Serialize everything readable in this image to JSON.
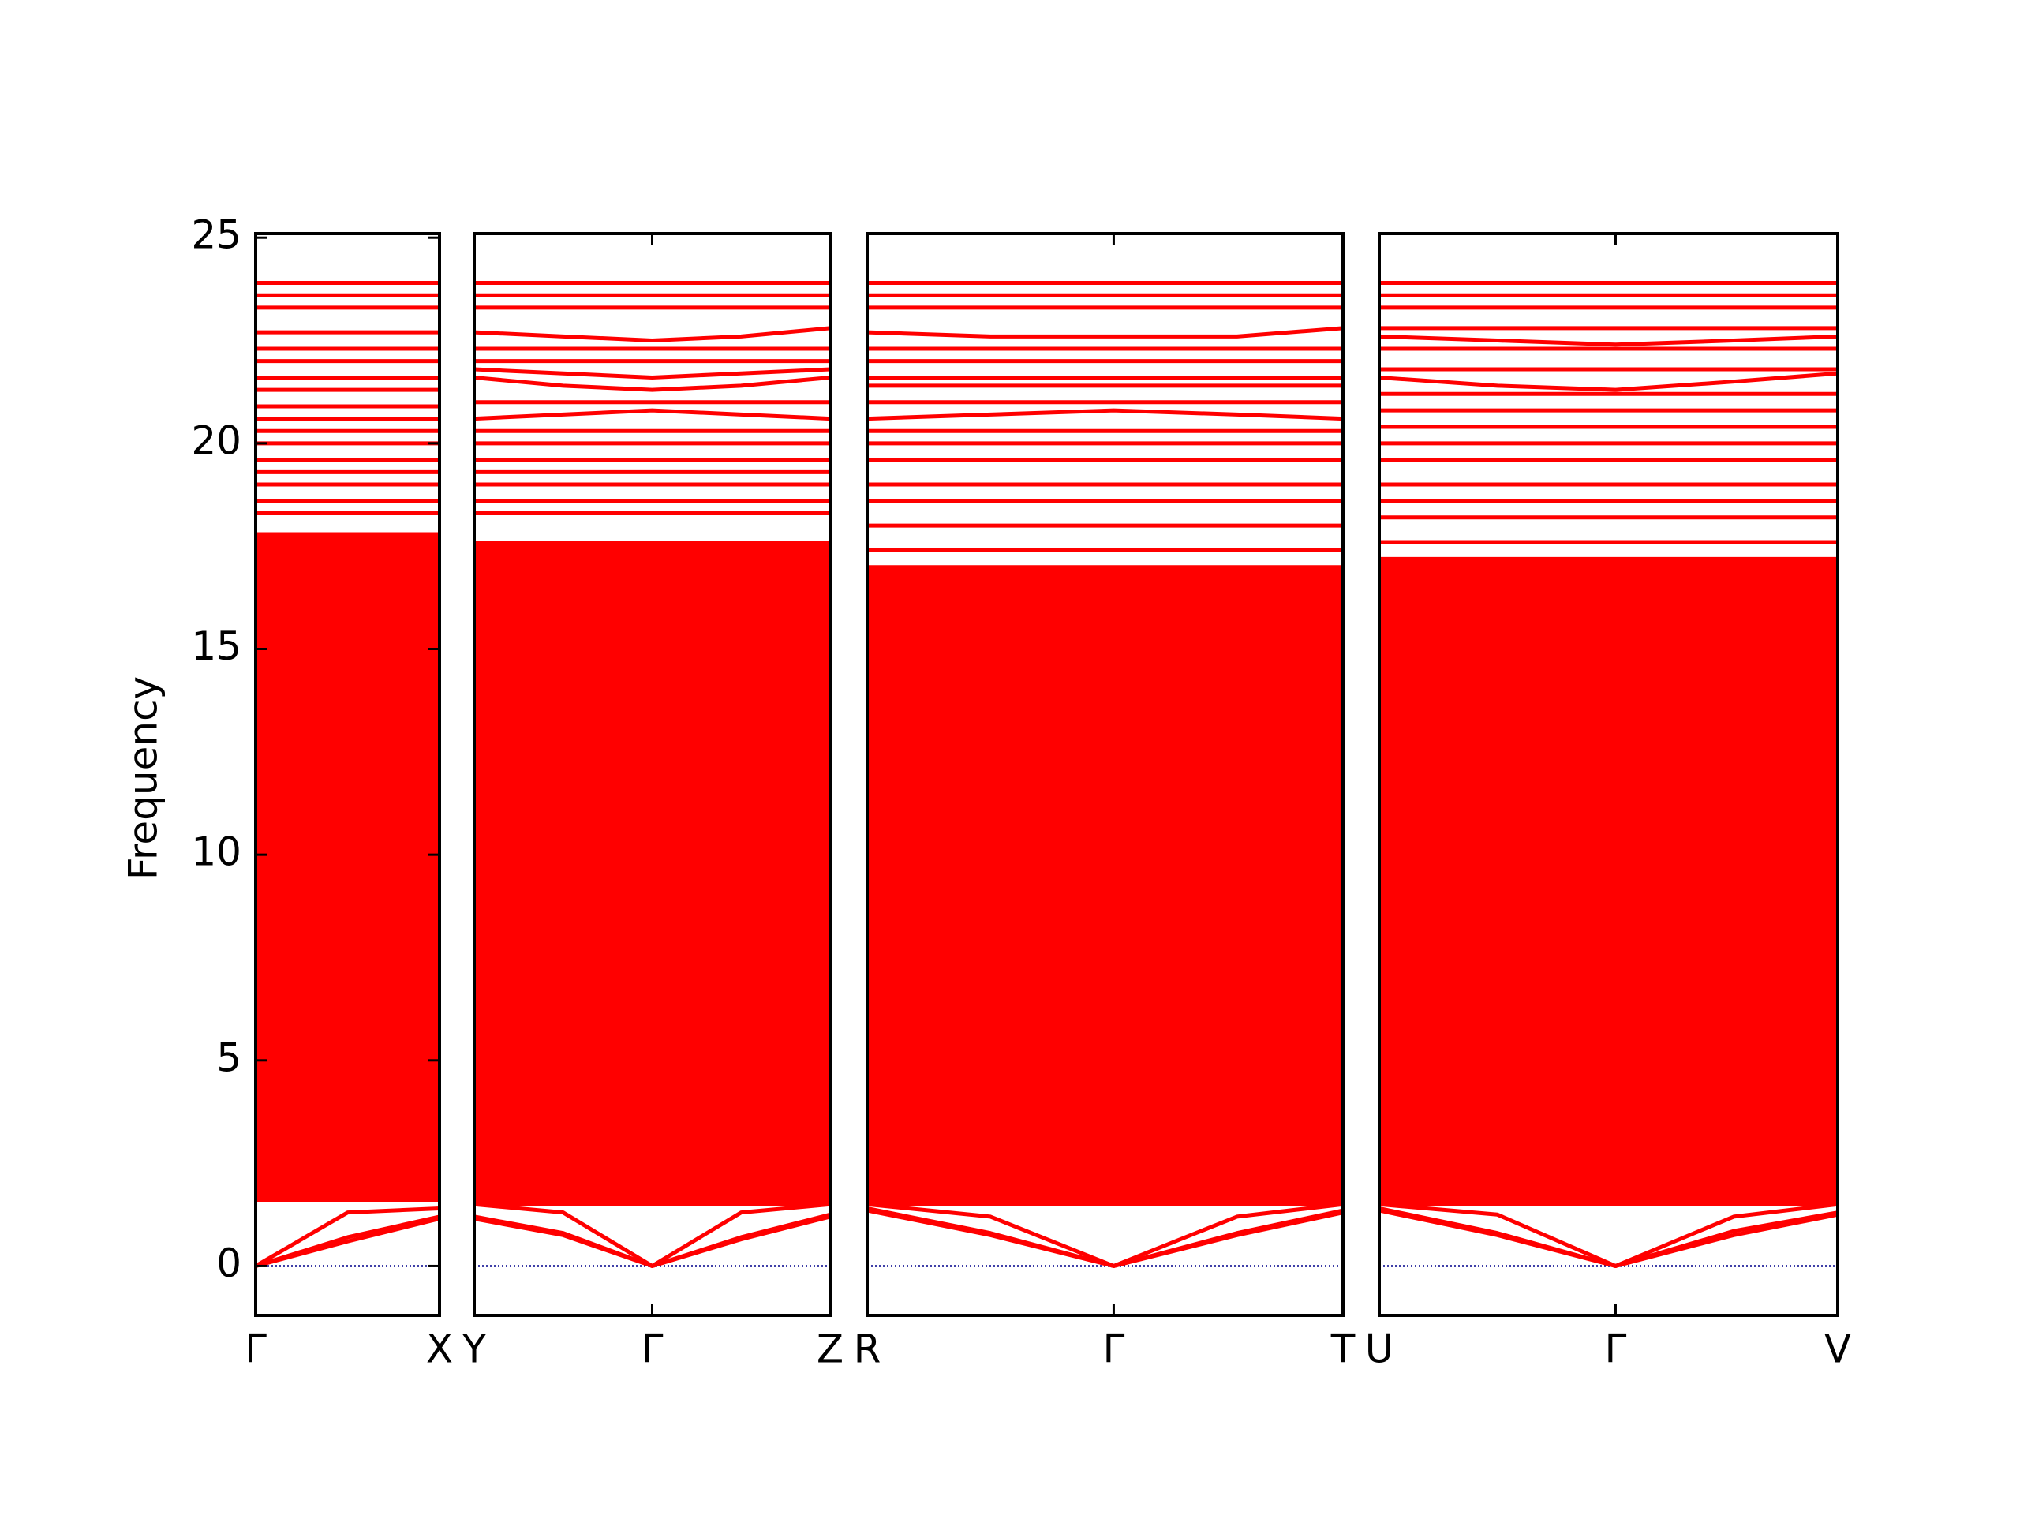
{
  "chart_data": [
    {
      "type": "line",
      "y_label": "Frequency",
      "ylim": [
        -1.2,
        25.1
      ],
      "yticks": [
        0,
        5,
        10,
        15,
        20,
        25
      ],
      "zero_line_color": "#00008b",
      "x": [
        0,
        0.5,
        1
      ],
      "xlim": [
        0,
        1
      ],
      "xticks": [
        {
          "value": 0,
          "label": "Γ"
        },
        {
          "value": 1,
          "label": "X"
        }
      ],
      "series": [
        {
          "type": "area",
          "color": "#ff0000",
          "values": [
            1.6,
            1.6,
            1.6
          ],
          "upper": [
            17.8,
            17.8,
            17.8
          ]
        },
        {
          "color": "#ff0000",
          "values": [
            0,
            1.3,
            1.4
          ]
        },
        {
          "color": "#ff0000",
          "values": [
            0,
            0.7,
            1.2
          ]
        },
        {
          "color": "#ff0000",
          "values": [
            0,
            0.6,
            1.15
          ]
        },
        {
          "color": "#ff0000",
          "values": [
            18.3,
            18.3,
            18.3
          ]
        },
        {
          "color": "#ff0000",
          "values": [
            18.6,
            18.6,
            18.6
          ]
        },
        {
          "color": "#ff0000",
          "values": [
            19.0,
            19.0,
            19.0
          ]
        },
        {
          "color": "#ff0000",
          "values": [
            19.3,
            19.3,
            19.3
          ]
        },
        {
          "color": "#ff0000",
          "values": [
            19.6,
            19.6,
            19.6
          ]
        },
        {
          "color": "#ff0000",
          "values": [
            20.0,
            20.0,
            20.0
          ]
        },
        {
          "color": "#ff0000",
          "values": [
            20.3,
            20.3,
            20.3
          ]
        },
        {
          "color": "#ff0000",
          "values": [
            20.6,
            20.6,
            20.6
          ]
        },
        {
          "color": "#ff0000",
          "values": [
            20.9,
            20.9,
            20.9
          ]
        },
        {
          "color": "#ff0000",
          "values": [
            21.3,
            21.3,
            21.3
          ]
        },
        {
          "color": "#ff0000",
          "values": [
            21.6,
            21.6,
            21.6
          ]
        },
        {
          "color": "#ff0000",
          "values": [
            22.0,
            22.0,
            22.0
          ]
        },
        {
          "color": "#ff0000",
          "values": [
            22.3,
            22.3,
            22.3
          ]
        },
        {
          "color": "#ff0000",
          "values": [
            22.7,
            22.7,
            22.7
          ]
        },
        {
          "color": "#ff0000",
          "values": [
            23.3,
            23.3,
            23.3
          ]
        },
        {
          "color": "#ff0000",
          "values": [
            23.6,
            23.6,
            23.6
          ]
        },
        {
          "color": "#ff0000",
          "values": [
            23.9,
            23.9,
            23.9
          ]
        }
      ]
    },
    {
      "type": "line",
      "ylim": [
        -1.2,
        25.1
      ],
      "zero_line_color": "#00008b",
      "x": [
        0,
        0.5,
        1,
        1.5,
        2
      ],
      "xlim": [
        0,
        2
      ],
      "xticks": [
        {
          "value": 0,
          "label": "Y"
        },
        {
          "value": 1,
          "label": "Γ"
        },
        {
          "value": 2,
          "label": "Z"
        }
      ],
      "series": [
        {
          "type": "area",
          "color": "#ff0000",
          "values": [
            1.5,
            1.5,
            1.5,
            1.5,
            1.5
          ],
          "upper": [
            17.6,
            17.6,
            17.6,
            17.6,
            17.6
          ]
        },
        {
          "color": "#ff0000",
          "values": [
            1.5,
            1.3,
            0,
            1.3,
            1.5
          ]
        },
        {
          "color": "#ff0000",
          "values": [
            1.2,
            0.8,
            0,
            0.7,
            1.25
          ]
        },
        {
          "color": "#ff0000",
          "values": [
            1.15,
            0.75,
            0,
            0.65,
            1.2
          ]
        },
        {
          "color": "#ff0000",
          "values": [
            18.3,
            18.3,
            18.3,
            18.3,
            18.3
          ]
        },
        {
          "color": "#ff0000",
          "values": [
            18.6,
            18.6,
            18.6,
            18.6,
            18.6
          ]
        },
        {
          "color": "#ff0000",
          "values": [
            19.0,
            19.0,
            19.0,
            19.0,
            19.0
          ]
        },
        {
          "color": "#ff0000",
          "values": [
            19.3,
            19.3,
            19.3,
            19.3,
            19.3
          ]
        },
        {
          "color": "#ff0000",
          "values": [
            19.6,
            19.6,
            19.6,
            19.6,
            19.6
          ]
        },
        {
          "color": "#ff0000",
          "values": [
            20.0,
            20.0,
            20.0,
            20.0,
            20.0
          ]
        },
        {
          "color": "#ff0000",
          "values": [
            20.3,
            20.3,
            20.3,
            20.3,
            20.3
          ]
        },
        {
          "color": "#ff0000",
          "values": [
            20.6,
            20.7,
            20.8,
            20.7,
            20.6
          ]
        },
        {
          "color": "#ff0000",
          "values": [
            21.0,
            21.0,
            21.0,
            21.0,
            21.0
          ]
        },
        {
          "color": "#ff0000",
          "values": [
            21.6,
            21.4,
            21.3,
            21.4,
            21.6
          ]
        },
        {
          "color": "#ff0000",
          "values": [
            21.8,
            21.7,
            21.6,
            21.7,
            21.8
          ]
        },
        {
          "color": "#ff0000",
          "values": [
            22.0,
            22.0,
            22.0,
            22.0,
            22.0
          ]
        },
        {
          "color": "#ff0000",
          "values": [
            22.3,
            22.3,
            22.3,
            22.3,
            22.3
          ]
        },
        {
          "color": "#ff0000",
          "values": [
            22.7,
            22.6,
            22.5,
            22.6,
            22.8
          ]
        },
        {
          "color": "#ff0000",
          "values": [
            23.3,
            23.3,
            23.3,
            23.3,
            23.3
          ]
        },
        {
          "color": "#ff0000",
          "values": [
            23.6,
            23.6,
            23.6,
            23.6,
            23.6
          ]
        },
        {
          "color": "#ff0000",
          "values": [
            23.9,
            23.9,
            23.9,
            23.9,
            23.9
          ]
        }
      ]
    },
    {
      "type": "line",
      "ylim": [
        -1.2,
        25.1
      ],
      "zero_line_color": "#00008b",
      "x": [
        0,
        0.5,
        1,
        1.5,
        1.93
      ],
      "xlim": [
        0,
        1.93
      ],
      "xticks": [
        {
          "value": 0,
          "label": "R"
        },
        {
          "value": 1,
          "label": "Γ"
        },
        {
          "value": 1.93,
          "label": "T"
        }
      ],
      "series": [
        {
          "type": "area",
          "color": "#ff0000",
          "values": [
            1.5,
            1.5,
            1.5,
            1.5,
            1.5
          ],
          "upper": [
            17.0,
            17.0,
            17.0,
            17.0,
            17.0
          ]
        },
        {
          "color": "#ff0000",
          "values": [
            1.5,
            1.2,
            0,
            1.2,
            1.5
          ]
        },
        {
          "color": "#ff0000",
          "values": [
            1.4,
            0.8,
            0,
            0.8,
            1.35
          ]
        },
        {
          "color": "#ff0000",
          "values": [
            1.35,
            0.75,
            0,
            0.75,
            1.3
          ]
        },
        {
          "color": "#ff0000",
          "values": [
            17.4,
            17.4,
            17.4,
            17.4,
            17.4
          ]
        },
        {
          "color": "#ff0000",
          "values": [
            18.0,
            18.0,
            18.0,
            18.0,
            18.0
          ]
        },
        {
          "color": "#ff0000",
          "values": [
            18.6,
            18.6,
            18.6,
            18.6,
            18.6
          ]
        },
        {
          "color": "#ff0000",
          "values": [
            19.0,
            19.0,
            19.0,
            19.0,
            19.0
          ]
        },
        {
          "color": "#ff0000",
          "values": [
            19.6,
            19.6,
            19.6,
            19.6,
            19.6
          ]
        },
        {
          "color": "#ff0000",
          "values": [
            20.0,
            20.0,
            20.0,
            20.0,
            20.0
          ]
        },
        {
          "color": "#ff0000",
          "values": [
            20.3,
            20.3,
            20.3,
            20.3,
            20.3
          ]
        },
        {
          "color": "#ff0000",
          "values": [
            20.6,
            20.7,
            20.8,
            20.7,
            20.6
          ]
        },
        {
          "color": "#ff0000",
          "values": [
            21.0,
            21.0,
            21.0,
            21.0,
            21.0
          ]
        },
        {
          "color": "#ff0000",
          "values": [
            21.4,
            21.4,
            21.4,
            21.4,
            21.4
          ]
        },
        {
          "color": "#ff0000",
          "values": [
            21.6,
            21.6,
            21.6,
            21.6,
            21.6
          ]
        },
        {
          "color": "#ff0000",
          "values": [
            22.0,
            22.0,
            22.0,
            22.0,
            22.0
          ]
        },
        {
          "color": "#ff0000",
          "values": [
            22.3,
            22.3,
            22.3,
            22.3,
            22.3
          ]
        },
        {
          "color": "#ff0000",
          "values": [
            22.7,
            22.6,
            22.6,
            22.6,
            22.8
          ]
        },
        {
          "color": "#ff0000",
          "values": [
            23.3,
            23.3,
            23.3,
            23.3,
            23.3
          ]
        },
        {
          "color": "#ff0000",
          "values": [
            23.6,
            23.6,
            23.6,
            23.6,
            23.6
          ]
        },
        {
          "color": "#ff0000",
          "values": [
            23.9,
            23.9,
            23.9,
            23.9,
            23.9
          ]
        }
      ]
    },
    {
      "type": "line",
      "ylim": [
        -1.2,
        25.1
      ],
      "zero_line_color": "#00008b",
      "x": [
        0,
        0.5,
        1,
        1.5,
        1.94
      ],
      "xlim": [
        0,
        1.94
      ],
      "xticks": [
        {
          "value": 0,
          "label": "U"
        },
        {
          "value": 1,
          "label": "Γ"
        },
        {
          "value": 1.94,
          "label": "V"
        }
      ],
      "series": [
        {
          "type": "area",
          "color": "#ff0000",
          "values": [
            1.5,
            1.5,
            1.5,
            1.5,
            1.5
          ],
          "upper": [
            17.2,
            17.2,
            17.2,
            17.2,
            17.2
          ]
        },
        {
          "color": "#ff0000",
          "values": [
            1.5,
            1.25,
            0,
            1.2,
            1.5
          ]
        },
        {
          "color": "#ff0000",
          "values": [
            1.4,
            0.8,
            0,
            0.85,
            1.3
          ]
        },
        {
          "color": "#ff0000",
          "values": [
            1.35,
            0.75,
            0,
            0.75,
            1.25
          ]
        },
        {
          "color": "#ff0000",
          "values": [
            17.6,
            17.6,
            17.6,
            17.6,
            17.6
          ]
        },
        {
          "color": "#ff0000",
          "values": [
            18.2,
            18.2,
            18.2,
            18.2,
            18.2
          ]
        },
        {
          "color": "#ff0000",
          "values": [
            18.6,
            18.6,
            18.6,
            18.6,
            18.6
          ]
        },
        {
          "color": "#ff0000",
          "values": [
            19.0,
            19.0,
            19.0,
            19.0,
            19.0
          ]
        },
        {
          "color": "#ff0000",
          "values": [
            19.6,
            19.6,
            19.6,
            19.6,
            19.6
          ]
        },
        {
          "color": "#ff0000",
          "values": [
            20.0,
            20.0,
            20.0,
            20.0,
            20.0
          ]
        },
        {
          "color": "#ff0000",
          "values": [
            20.4,
            20.4,
            20.4,
            20.4,
            20.4
          ]
        },
        {
          "color": "#ff0000",
          "values": [
            20.8,
            20.8,
            20.8,
            20.8,
            20.8
          ]
        },
        {
          "color": "#ff0000",
          "values": [
            21.2,
            21.2,
            21.2,
            21.2,
            21.2
          ]
        },
        {
          "color": "#ff0000",
          "values": [
            21.6,
            21.4,
            21.3,
            21.5,
            21.7
          ]
        },
        {
          "color": "#ff0000",
          "values": [
            21.8,
            21.8,
            21.8,
            21.8,
            21.8
          ]
        },
        {
          "color": "#ff0000",
          "values": [
            22.3,
            22.3,
            22.3,
            22.3,
            22.3
          ]
        },
        {
          "color": "#ff0000",
          "values": [
            22.6,
            22.5,
            22.4,
            22.5,
            22.6
          ]
        },
        {
          "color": "#ff0000",
          "values": [
            22.8,
            22.8,
            22.8,
            22.8,
            22.8
          ]
        },
        {
          "color": "#ff0000",
          "values": [
            23.3,
            23.3,
            23.3,
            23.3,
            23.3
          ]
        },
        {
          "color": "#ff0000",
          "values": [
            23.6,
            23.6,
            23.6,
            23.6,
            23.6
          ]
        },
        {
          "color": "#ff0000",
          "values": [
            23.9,
            23.9,
            23.9,
            23.9,
            23.9
          ]
        }
      ]
    }
  ]
}
